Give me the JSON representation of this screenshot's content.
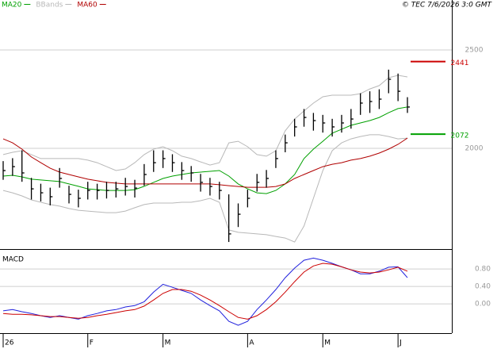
{
  "chart_data": [
    {
      "type": "ohlc",
      "credit": "© TEC 7/6/2026 3:0 GMT",
      "ylim": [
        1492,
        2754
      ],
      "yticks": [
        2000,
        2500
      ],
      "grid": true,
      "ohlc": {
        "color": "#000000",
        "close": [
          1887,
          1907,
          1875,
          1794,
          1774,
          1754,
          1847,
          1766,
          1746,
          1786,
          1786,
          1786,
          1794,
          1806,
          1798,
          1867,
          1927,
          1948,
          1927,
          1887,
          1875,
          1827,
          1806,
          1786,
          1565,
          1665,
          1746,
          1827,
          1847,
          1948,
          2028,
          2109,
          2157,
          2141,
          2129,
          2109,
          2129,
          2149,
          2230,
          2238,
          2250,
          2351,
          2290,
          2210
        ],
        "high": [
          1935,
          1950,
          1990,
          1850,
          1820,
          1800,
          1900,
          1810,
          1790,
          1830,
          1820,
          1830,
          1830,
          1850,
          1840,
          1920,
          1990,
          1990,
          1970,
          1930,
          1910,
          1870,
          1850,
          1830,
          1766,
          1720,
          1790,
          1870,
          1890,
          1990,
          2070,
          2150,
          2200,
          2180,
          2170,
          2150,
          2170,
          2200,
          2280,
          2290,
          2300,
          2400,
          2380,
          2260
        ],
        "low": [
          1840,
          1860,
          1830,
          1740,
          1730,
          1710,
          1800,
          1720,
          1700,
          1740,
          1740,
          1745,
          1750,
          1760,
          1750,
          1810,
          1880,
          1900,
          1880,
          1840,
          1830,
          1780,
          1760,
          1740,
          1524,
          1600,
          1700,
          1780,
          1800,
          1900,
          1980,
          2060,
          2110,
          2090,
          2080,
          2060,
          2080,
          2100,
          2170,
          2180,
          2200,
          2280,
          2240,
          2180
        ]
      },
      "series": [
        {
          "name": "MA20",
          "color": "#00a000",
          "values": [
            1859,
            1863,
            1855,
            1843,
            1839,
            1835,
            1831,
            1819,
            1807,
            1794,
            1790,
            1786,
            1786,
            1786,
            1790,
            1807,
            1827,
            1847,
            1859,
            1867,
            1875,
            1879,
            1883,
            1887,
            1859,
            1819,
            1794,
            1774,
            1770,
            1786,
            1819,
            1867,
            1948,
            1996,
            2036,
            2077,
            2097,
            2117,
            2129,
            2141,
            2157,
            2181,
            2202,
            2210
          ]
        },
        {
          "name": "BBands",
          "color": "#b8b8b8",
          "upper": [
            1968,
            1980,
            1988,
            1968,
            1948,
            1948,
            1948,
            1948,
            1948,
            1940,
            1927,
            1907,
            1887,
            1895,
            1927,
            1968,
            1996,
            2008,
            1988,
            1960,
            1948,
            1931,
            1915,
            1927,
            2028,
            2036,
            2008,
            1968,
            1960,
            1988,
            2089,
            2149,
            2190,
            2230,
            2262,
            2270,
            2270,
            2270,
            2278,
            2302,
            2319,
            2359,
            2371,
            2363
          ],
          "lower": [
            1786,
            1774,
            1758,
            1738,
            1726,
            1714,
            1706,
            1694,
            1685,
            1681,
            1677,
            1673,
            1673,
            1681,
            1698,
            1714,
            1722,
            1722,
            1722,
            1726,
            1726,
            1734,
            1746,
            1726,
            1585,
            1573,
            1569,
            1565,
            1561,
            1552,
            1544,
            1524,
            1605,
            1746,
            1887,
            1988,
            2028,
            2048,
            2060,
            2069,
            2069,
            2060,
            2048,
            2052
          ]
        },
        {
          "name": "MA60",
          "color": "#b00000",
          "values": [
            2048,
            2028,
            1996,
            1956,
            1927,
            1899,
            1879,
            1867,
            1855,
            1843,
            1835,
            1827,
            1823,
            1819,
            1819,
            1819,
            1819,
            1819,
            1819,
            1819,
            1819,
            1819,
            1819,
            1815,
            1810,
            1806,
            1802,
            1802,
            1802,
            1806,
            1819,
            1847,
            1867,
            1887,
            1907,
            1919,
            1927,
            1940,
            1948,
            1960,
            1976,
            1996,
            2020,
            2052
          ]
        }
      ],
      "annotations": [
        {
          "value": 2441,
          "color": "#cc0000"
        },
        {
          "value": 2072,
          "color": "#00a000"
        }
      ]
    },
    {
      "type": "line",
      "title": "MACD",
      "categories": [
        "26",
        null,
        null,
        null,
        null,
        null,
        null,
        null,
        null,
        "F",
        null,
        null,
        null,
        null,
        null,
        null,
        null,
        "M",
        null,
        null,
        null,
        null,
        null,
        null,
        null,
        null,
        "A",
        null,
        null,
        null,
        null,
        null,
        null,
        null,
        "M",
        null,
        null,
        null,
        null,
        null,
        null,
        null,
        "J",
        null
      ],
      "ylim": [
        -0.67,
        1.22
      ],
      "yticks": [
        {
          "value": 0.8,
          "label": "0.80"
        },
        {
          "value": 0.4,
          "label": "0.40"
        },
        {
          "value": 0,
          "label": "0.00"
        }
      ],
      "grid": true,
      "series": [
        {
          "color": "#2020dd",
          "values": [
            -0.16,
            -0.13,
            -0.18,
            -0.22,
            -0.27,
            -0.31,
            -0.27,
            -0.31,
            -0.35,
            -0.27,
            -0.22,
            -0.16,
            -0.13,
            -0.07,
            -0.04,
            0.05,
            0.27,
            0.45,
            0.38,
            0.31,
            0.24,
            0.09,
            -0.04,
            -0.16,
            -0.4,
            -0.49,
            -0.4,
            -0.13,
            0.09,
            0.33,
            0.6,
            0.82,
            1.0,
            1.05,
            1.0,
            0.93,
            0.85,
            0.78,
            0.69,
            0.69,
            0.75,
            0.84,
            0.85,
            0.6
          ]
        },
        {
          "color": "#cc0000",
          "values": [
            -0.22,
            -0.24,
            -0.24,
            -0.25,
            -0.27,
            -0.29,
            -0.29,
            -0.31,
            -0.33,
            -0.31,
            -0.27,
            -0.24,
            -0.2,
            -0.16,
            -0.13,
            -0.05,
            0.09,
            0.24,
            0.33,
            0.33,
            0.29,
            0.2,
            0.09,
            -0.04,
            -0.18,
            -0.31,
            -0.35,
            -0.27,
            -0.13,
            0.05,
            0.27,
            0.51,
            0.73,
            0.87,
            0.93,
            0.91,
            0.85,
            0.78,
            0.73,
            0.71,
            0.73,
            0.78,
            0.84,
            0.75
          ]
        }
      ]
    }
  ]
}
